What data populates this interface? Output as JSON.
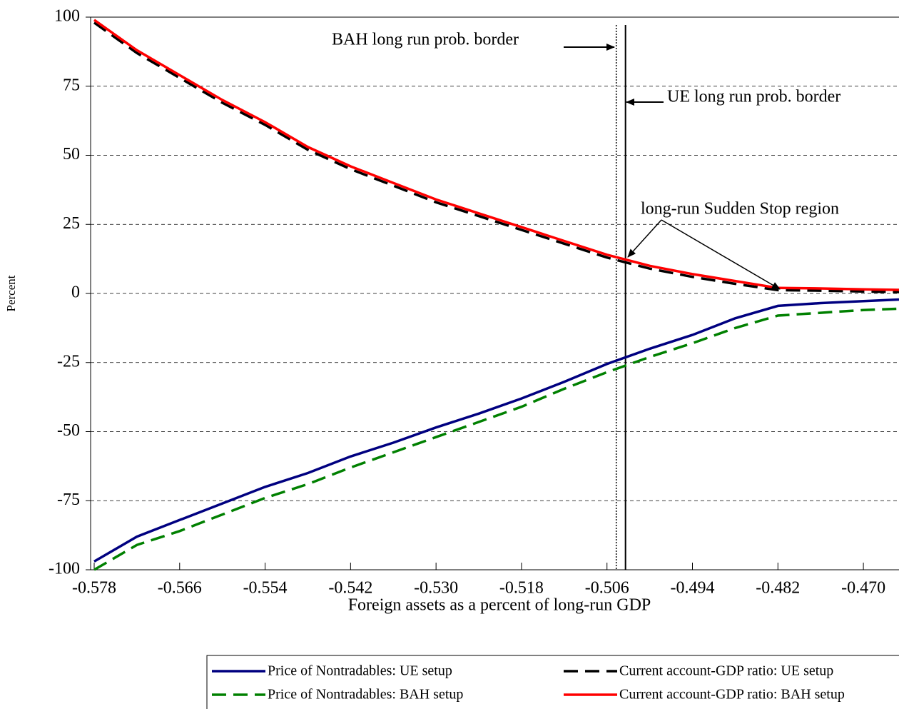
{
  "chart_data": {
    "type": "line",
    "x_label": "Foreign assets as a percent of long-run GDP",
    "y_label": "Percent",
    "x": [
      -0.578,
      -0.572,
      -0.566,
      -0.56,
      -0.554,
      -0.548,
      -0.542,
      -0.536,
      -0.53,
      -0.524,
      -0.518,
      -0.512,
      -0.506,
      -0.5,
      -0.494,
      -0.488,
      -0.482,
      -0.476,
      -0.47,
      -0.465
    ],
    "series": [
      {
        "name": "Price of Nontradables: UE setup",
        "color": "#000080",
        "dash": "solid",
        "values": [
          -97,
          -88,
          -82,
          -76,
          -70,
          -65,
          -59,
          -54,
          -48.5,
          -43.5,
          -38,
          -32,
          -25.5,
          -20,
          -15,
          -9,
          -4.5,
          -3.5,
          -2.8,
          -2.2
        ]
      },
      {
        "name": "Current account-GDP ratio: UE setup",
        "color": "#000000",
        "dash": "dashed",
        "values": [
          98,
          87,
          78,
          69,
          61,
          52,
          45,
          39,
          33,
          28,
          23,
          18,
          13,
          9,
          6,
          3.5,
          1.2,
          1,
          0.7,
          0.5
        ]
      },
      {
        "name": "Price of Nontradables: BAH setup",
        "color": "#008000",
        "dash": "dashed",
        "values": [
          -100,
          -91,
          -86,
          -80,
          -74,
          -69,
          -63,
          -57.5,
          -52,
          -46.5,
          -41,
          -34.5,
          -28.5,
          -23,
          -18,
          -12.5,
          -8,
          -7,
          -6,
          -5.5
        ]
      },
      {
        "name": "Current account-GDP ratio: BAH setup",
        "color": "#ff0000",
        "dash": "solid",
        "values": [
          99,
          88,
          79,
          70,
          62,
          53,
          46,
          40,
          34,
          29,
          24,
          19,
          14,
          10,
          7,
          4.5,
          2,
          1.8,
          1.5,
          1.3
        ]
      }
    ],
    "vlines": [
      {
        "x": -0.5047,
        "style": "dotted"
      },
      {
        "x": -0.5034,
        "style": "solid"
      }
    ],
    "annotations": [
      "BAH long run prob. border",
      "UE long run prob. border",
      "long-run Sudden Stop region"
    ],
    "xlim": [
      -0.5785,
      -0.465
    ],
    "ylim": [
      -100,
      100
    ],
    "xticks": [
      -0.578,
      -0.566,
      -0.554,
      -0.542,
      {
        "value": -0.53,
        "label": "-0.530"
      },
      -0.518,
      -0.506,
      -0.494,
      -0.482,
      {
        "value": -0.47,
        "label": "-0.470"
      }
    ],
    "yticks": [
      -100,
      -75,
      -50,
      -25,
      0,
      25,
      50,
      75,
      100
    ],
    "grid": true
  }
}
